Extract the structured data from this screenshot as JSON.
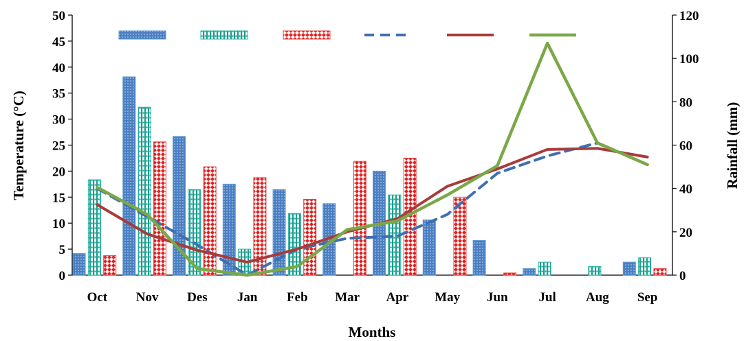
{
  "chart_data": {
    "type": "bar",
    "title": "",
    "xlabel": "Months",
    "ylabel": "Temperature (°C)",
    "y2label": "Rainfall (mm)",
    "categories": [
      "Oct",
      "Nov",
      "Des",
      "Jan",
      "Feb",
      "Mar",
      "Apr",
      "May",
      "Jun",
      "Jul",
      "Aug",
      "Sep"
    ],
    "ylim": [
      0,
      50
    ],
    "y2lim": [
      0,
      120
    ],
    "yticks": [
      0,
      5,
      10,
      15,
      20,
      25,
      30,
      35,
      40,
      45,
      50
    ],
    "y2ticks": [
      0,
      20,
      40,
      60,
      80,
      100,
      120
    ],
    "legend_position": "top",
    "grid": false,
    "bar_series": [
      {
        "style": "blue-dotted",
        "axis": "right",
        "color": "#4a7fc1",
        "values": [
          10,
          91.5,
          64,
          42,
          39.5,
          33,
          48,
          25.5,
          16,
          3,
          0,
          6
        ]
      },
      {
        "style": "teal-beaded",
        "axis": "right",
        "color": "#2bb5a6",
        "values": [
          44,
          77.5,
          39.5,
          12,
          28.5,
          0,
          37,
          0,
          0,
          6,
          4,
          8
        ]
      },
      {
        "style": "red-diamond",
        "axis": "right",
        "color": "#e02020",
        "values": [
          9,
          61.5,
          50,
          45,
          35,
          52.5,
          54,
          36,
          1,
          0,
          0,
          3
        ]
      }
    ],
    "line_series": [
      {
        "style": "blue-dashed",
        "axis": "right",
        "color": "#3f6fb0",
        "values": [
          40,
          27,
          14,
          0,
          12,
          17,
          18,
          28,
          47,
          55,
          61,
          51
        ]
      },
      {
        "style": "dark-red-solid",
        "axis": "right",
        "color": "#a83b3b",
        "values": [
          32.5,
          19,
          11.5,
          6,
          12,
          20,
          26,
          41,
          49,
          58,
          58.5,
          54.5
        ]
      },
      {
        "style": "green-solid",
        "axis": "right",
        "color": "#7aa848",
        "values": [
          40.5,
          28,
          3,
          0,
          4,
          21,
          25,
          37,
          50.5,
          107,
          61,
          51
        ]
      }
    ]
  }
}
